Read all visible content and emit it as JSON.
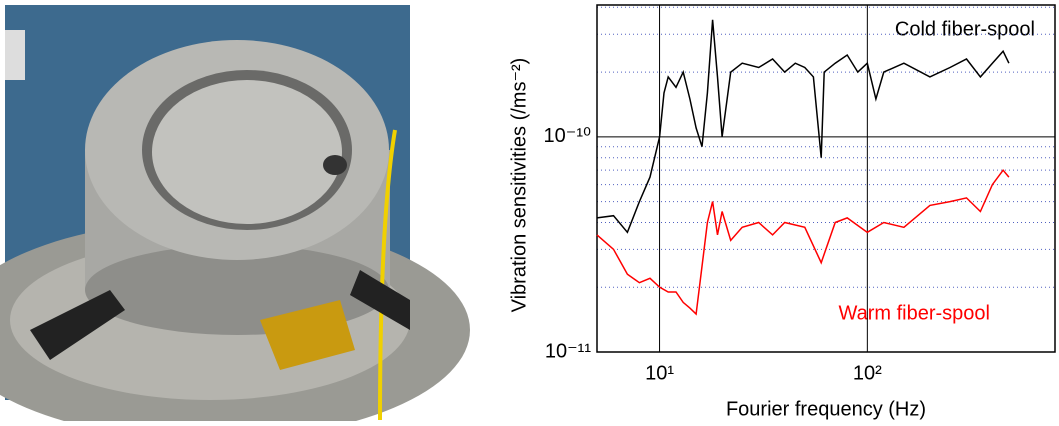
{
  "chart_data": {
    "type": "line",
    "xlabel": "Fourier frequency (Hz)",
    "ylabel": "Vibration sensitivities (/ms⁻²)",
    "annotations": [
      "Cold fiber-spool",
      "Warm fiber-spool"
    ],
    "xscale": "log",
    "yscale": "log",
    "grid": true,
    "xlim": [
      5,
      800
    ],
    "ylim": [
      1e-11,
      4.1e-10
    ],
    "xticks": [
      {
        "value": 10,
        "label": "10¹"
      },
      {
        "value": 100,
        "label": "10²"
      }
    ],
    "yticks": [
      {
        "value": 1e-11,
        "label": "10⁻¹¹"
      },
      {
        "value": 1e-10,
        "label": "10⁻¹⁰"
      }
    ],
    "yminorticks": [
      2e-11,
      3e-11,
      4e-11,
      5e-11,
      6e-11,
      7e-11,
      8e-11,
      9e-11,
      2e-10,
      3e-10,
      4e-10
    ],
    "series": [
      {
        "name": "Cold fiber-spool",
        "color": "#000000",
        "x": [
          5,
          6,
          7,
          8,
          9,
          10,
          10.5,
          11,
          12,
          13,
          14,
          15,
          16,
          17,
          18,
          19,
          20,
          22,
          25,
          30,
          35,
          40,
          45,
          50,
          55,
          60,
          62,
          70,
          80,
          90,
          100,
          110,
          120,
          150,
          200,
          250,
          300,
          350,
          400,
          450,
          480
        ],
        "values": [
          4.2e-11,
          4.3e-11,
          3.6e-11,
          5e-11,
          6.5e-11,
          1e-10,
          1.6e-10,
          1.9e-10,
          1.7e-10,
          2e-10,
          1.5e-10,
          1.1e-10,
          9e-11,
          1.6e-10,
          3.5e-10,
          1.9e-10,
          1e-10,
          2e-10,
          2.2e-10,
          2.1e-10,
          2.3e-10,
          2e-10,
          2.2e-10,
          2.1e-10,
          1.9e-10,
          8e-11,
          2e-10,
          2.2e-10,
          2.4e-10,
          2e-10,
          2.2e-10,
          1.5e-10,
          2e-10,
          2.2e-10,
          1.9e-10,
          2.1e-10,
          2.3e-10,
          1.9e-10,
          2.2e-10,
          2.5e-10,
          2.2e-10
        ]
      },
      {
        "name": "Warm fiber-spool",
        "color": "#ff0000",
        "x": [
          5,
          6,
          7,
          8,
          9,
          10,
          11,
          12,
          13,
          14,
          15,
          16,
          17,
          18,
          19,
          20,
          22,
          25,
          30,
          35,
          40,
          50,
          60,
          70,
          80,
          100,
          120,
          150,
          200,
          250,
          300,
          350,
          400,
          450,
          480
        ],
        "values": [
          3.5e-11,
          3e-11,
          2.3e-11,
          2.1e-11,
          2.2e-11,
          2e-11,
          1.9e-11,
          1.9e-11,
          1.7e-11,
          1.6e-11,
          1.5e-11,
          2.5e-11,
          4e-11,
          5e-11,
          3.5e-11,
          4.5e-11,
          3.3e-11,
          3.8e-11,
          4e-11,
          3.5e-11,
          4e-11,
          3.8e-11,
          2.6e-11,
          4e-11,
          4.2e-11,
          3.6e-11,
          4e-11,
          3.8e-11,
          4.8e-11,
          5e-11,
          5.2e-11,
          4.5e-11,
          6e-11,
          7e-11,
          6.5e-11
        ]
      }
    ]
  }
}
